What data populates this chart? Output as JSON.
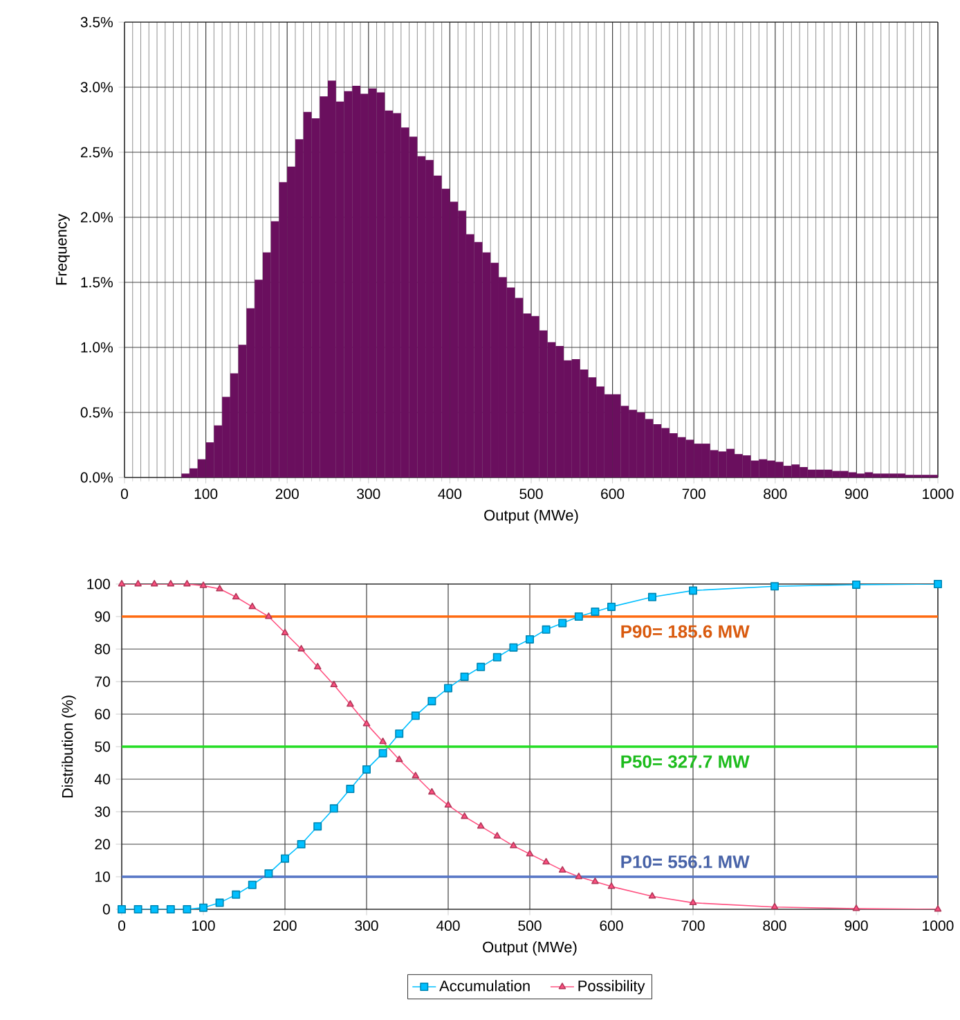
{
  "chart_data": [
    {
      "type": "histogram",
      "xlabel": "Output (MWe)",
      "ylabel": "Frequency",
      "color": "#6a0f5e",
      "bins": [
        0,
        10,
        20,
        30,
        40,
        50,
        60,
        70,
        80,
        90,
        100,
        110,
        120,
        130,
        140,
        150,
        160,
        170,
        180,
        190,
        200,
        210,
        220,
        230,
        240,
        250,
        260,
        270,
        280,
        290,
        300,
        310,
        320,
        330,
        340,
        350,
        360,
        370,
        380,
        390,
        400,
        410,
        420,
        430,
        440,
        450,
        460,
        470,
        480,
        490,
        500,
        510,
        520,
        530,
        540,
        550,
        560,
        570,
        580,
        590,
        600,
        610,
        620,
        630,
        640,
        650,
        660,
        670,
        680,
        690,
        700,
        710,
        720,
        730,
        740,
        750,
        760,
        770,
        780,
        790,
        800,
        810,
        820,
        830,
        840,
        850,
        860,
        870,
        880,
        890,
        900,
        910,
        920,
        930,
        940,
        950,
        960,
        970,
        980,
        990,
        1000
      ],
      "values": [
        0,
        0,
        0,
        0,
        0,
        0,
        0,
        0.03,
        0.07,
        0.14,
        0.27,
        0.4,
        0.62,
        0.8,
        1.02,
        1.3,
        1.52,
        1.73,
        1.97,
        2.27,
        2.39,
        2.6,
        2.81,
        2.76,
        2.93,
        3.05,
        2.89,
        2.97,
        3.01,
        2.95,
        2.99,
        2.96,
        2.82,
        2.8,
        2.69,
        2.62,
        2.47,
        2.44,
        2.32,
        2.22,
        2.12,
        2.05,
        1.87,
        1.81,
        1.73,
        1.65,
        1.54,
        1.46,
        1.38,
        1.26,
        1.24,
        1.13,
        1.04,
        1.01,
        0.9,
        0.91,
        0.83,
        0.77,
        0.7,
        0.64,
        0.64,
        0.55,
        0.52,
        0.5,
        0.45,
        0.41,
        0.38,
        0.34,
        0.31,
        0.29,
        0.26,
        0.26,
        0.21,
        0.2,
        0.22,
        0.18,
        0.17,
        0.13,
        0.14,
        0.13,
        0.12,
        0.09,
        0.1,
        0.08,
        0.06,
        0.06,
        0.06,
        0.05,
        0.05,
        0.04,
        0.03,
        0.04,
        0.03,
        0.03,
        0.03,
        0.03,
        0.02,
        0.02,
        0.02,
        0.02
      ],
      "xlim": [
        0,
        1000
      ],
      "xticks": [
        0,
        100,
        200,
        300,
        400,
        500,
        600,
        700,
        800,
        900,
        1000
      ],
      "ylim": [
        0,
        3.5
      ],
      "yticks": [
        {
          "value": 0,
          "label": "0.0%"
        },
        {
          "value": 0.5,
          "label": "0.5%"
        },
        {
          "value": 1,
          "label": "1.0%"
        },
        {
          "value": 1.5,
          "label": "1.5%"
        },
        {
          "value": 2,
          "label": "2.0%"
        },
        {
          "value": 2.5,
          "label": "2.5%"
        },
        {
          "value": 3,
          "label": "3.0%"
        },
        {
          "value": 3.5,
          "label": "3.5%"
        }
      ],
      "grid": true
    },
    {
      "type": "line",
      "xlabel": "Output (MWe)",
      "ylabel": "Distribution (%)",
      "series": [
        {
          "name": "Accumulation",
          "color": "#00bfff",
          "marker": "square",
          "x": [
            0,
            20,
            40,
            60,
            80,
            100,
            120,
            140,
            160,
            180,
            200,
            220,
            240,
            260,
            280,
            300,
            320,
            340,
            360,
            380,
            400,
            420,
            440,
            460,
            480,
            500,
            520,
            540,
            560,
            580,
            600,
            650,
            700,
            800,
            900,
            1000
          ],
          "values": [
            0,
            0,
            0,
            0,
            0,
            0.5,
            2,
            4.5,
            7.5,
            11,
            15.6,
            20,
            25.5,
            31,
            37,
            43,
            48,
            54,
            59.5,
            64,
            68,
            71.5,
            74.5,
            77.5,
            80.5,
            83,
            86,
            88,
            90,
            91.5,
            93,
            96,
            98,
            99.3,
            99.8,
            100
          ]
        },
        {
          "name": "Possibility",
          "color": "#ff5080",
          "marker": "triangle",
          "x": [
            0,
            20,
            40,
            60,
            80,
            100,
            120,
            140,
            160,
            180,
            200,
            220,
            240,
            260,
            280,
            300,
            320,
            340,
            360,
            380,
            400,
            420,
            440,
            460,
            480,
            500,
            520,
            540,
            560,
            580,
            600,
            650,
            700,
            800,
            900,
            1000
          ],
          "values": [
            100,
            100,
            100,
            100,
            100,
            99.5,
            98.5,
            96,
            93,
            90,
            85,
            80,
            74.5,
            69,
            63,
            57,
            51.5,
            46,
            41,
            36,
            32,
            28.5,
            25.5,
            22.5,
            19.5,
            17,
            14.5,
            12,
            10,
            8.5,
            7,
            4,
            2,
            0.7,
            0.2,
            0
          ]
        }
      ],
      "ref_lines": [
        {
          "axis": "y",
          "value": 90,
          "label": "P90= 185.6 MW",
          "color": "#ff6a10"
        },
        {
          "axis": "y",
          "value": 50,
          "label": "P50= 327.7 MW",
          "color": "#22dd22"
        },
        {
          "axis": "y",
          "value": 10,
          "label": "P10= 556.1 MW",
          "color": "#5575c5"
        }
      ],
      "xlim": [
        0,
        1000
      ],
      "xticks": [
        0,
        100,
        200,
        300,
        400,
        500,
        600,
        700,
        800,
        900,
        1000
      ],
      "ylim": [
        0,
        100
      ],
      "yticks": [
        0,
        10,
        20,
        30,
        40,
        50,
        60,
        70,
        80,
        90,
        100
      ],
      "grid": true,
      "legend": "bottom"
    }
  ]
}
